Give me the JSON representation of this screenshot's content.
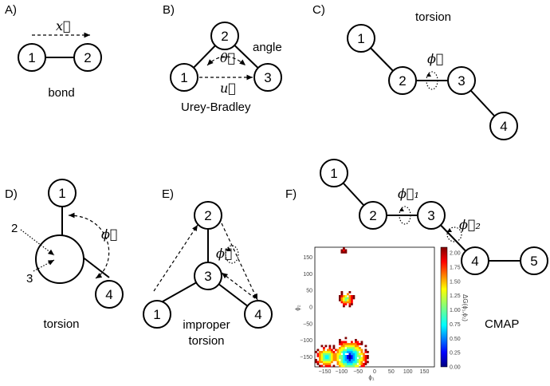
{
  "panels": {
    "A": {
      "label": "A)",
      "nodes": [
        "1",
        "2"
      ],
      "vector": "x⃗",
      "caption": "bond"
    },
    "B": {
      "label": "B)",
      "nodes": [
        "1",
        "2",
        "3"
      ],
      "angle_symbol": "θ⃗",
      "vector": "u⃗",
      "caption_top": "angle",
      "caption_bottom": "Urey-Bradley"
    },
    "C": {
      "label": "C)",
      "nodes": [
        "1",
        "2",
        "3",
        "4"
      ],
      "vector": "ϕ⃗",
      "caption": "torsion"
    },
    "D": {
      "label": "D)",
      "nodes": [
        "1",
        "4"
      ],
      "pointers": [
        "2",
        "3"
      ],
      "vector": "ϕ⃗",
      "caption": "torsion"
    },
    "E": {
      "label": "E)",
      "nodes": [
        "2",
        "3",
        "1",
        "4"
      ],
      "vector": "ϕ⃗",
      "caption_line1": "improper",
      "caption_line2": "torsion"
    },
    "F": {
      "label": "F)",
      "nodes": [
        "1",
        "2",
        "3",
        "4",
        "5"
      ],
      "vector1": "ϕ⃗₁",
      "vector2": "ϕ⃗₂",
      "caption": "CMAP"
    }
  },
  "chart_data": {
    "type": "heatmap",
    "xlabel": "ϕ₁",
    "ylabel": "ϕ₂",
    "xlim": [
      -180,
      180
    ],
    "ylim": [
      -180,
      180
    ],
    "xticks": [
      "−150",
      "−100",
      "−50",
      "0",
      "50",
      "100",
      "150"
    ],
    "yticks": [
      "150",
      "100",
      "50",
      "0",
      "−50",
      "−100",
      "−150"
    ],
    "colorbar_label": "ΔG(ϕ₁,ϕ₂)",
    "colorbar_ticks": [
      "2.00",
      "1.75",
      "1.50",
      "1.25",
      "1.00",
      "0.75",
      "0.50",
      "0.25",
      "0.00"
    ],
    "colorbar_range": [
      0,
      2.1
    ],
    "colors": [
      "#00007f",
      "#0000ff",
      "#00a0ff",
      "#00ffff",
      "#7fff7f",
      "#ffff00",
      "#ff8c00",
      "#ff0000",
      "#7f0000"
    ],
    "clusters": [
      {
        "phi1": -75,
        "phi2": -150,
        "min_energy": 0.1
      },
      {
        "phi1": -145,
        "phi2": -150,
        "min_energy": 0.6
      },
      {
        "phi1": -85,
        "phi2": 25,
        "min_energy": 0.9
      },
      {
        "phi1": -95,
        "phi2": 170,
        "min_energy": 1.7
      }
    ]
  }
}
